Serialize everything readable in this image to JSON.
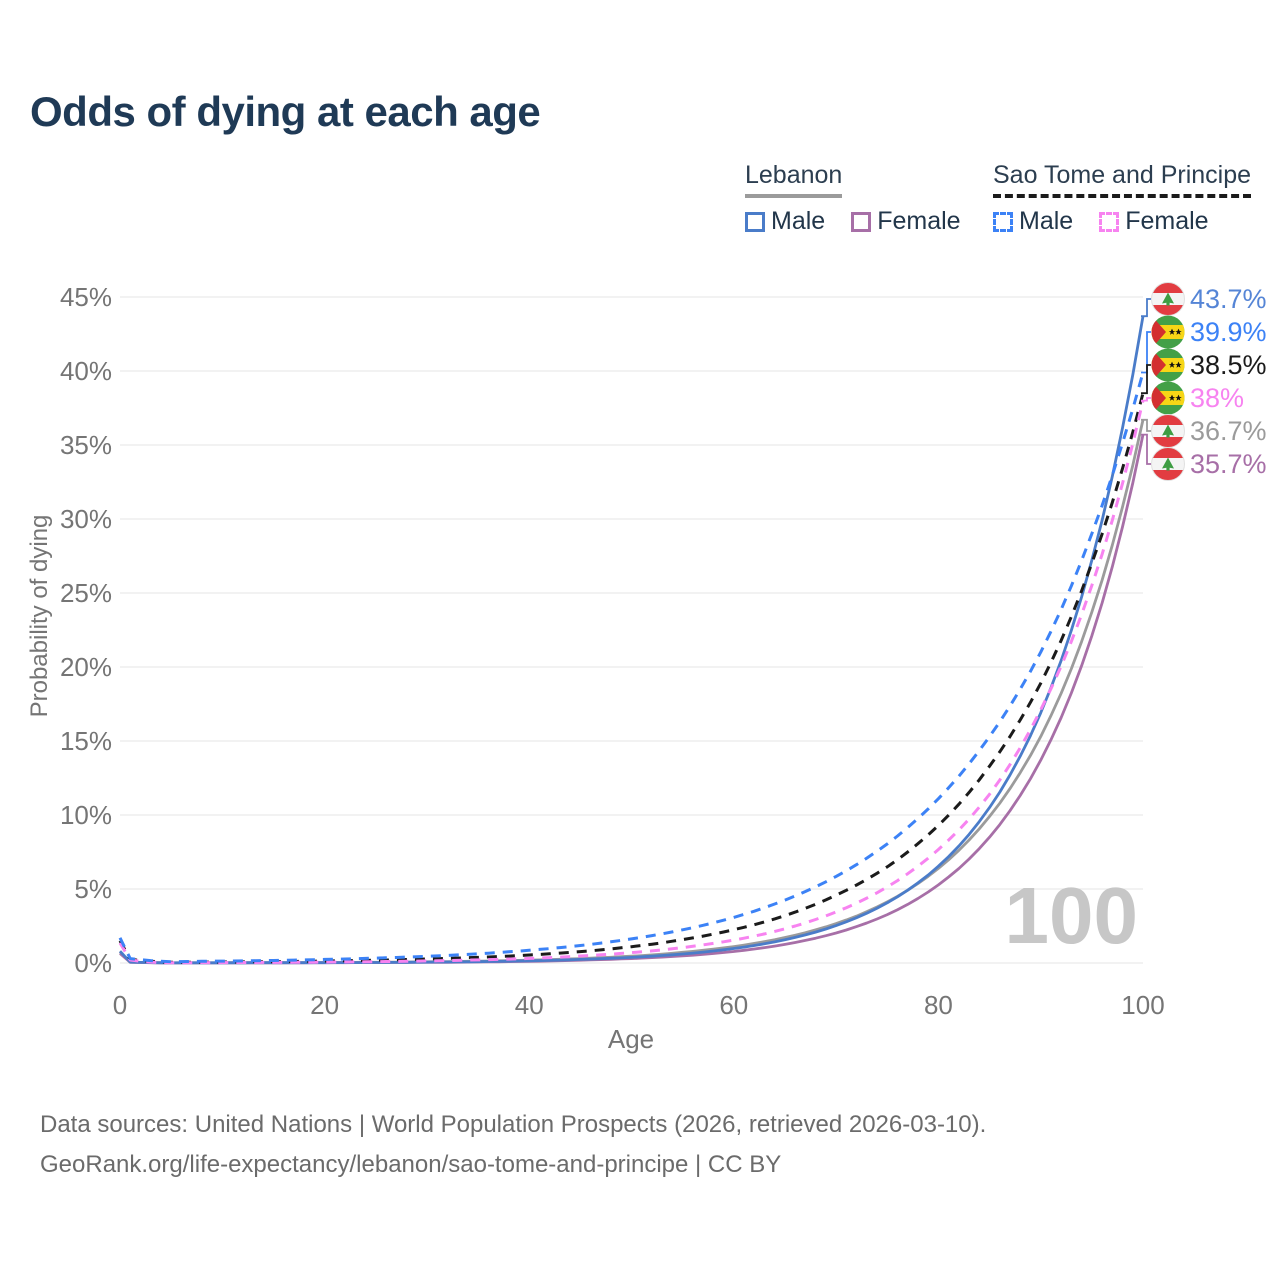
{
  "title": "Odds of dying at each age",
  "watermark": "100",
  "legend": {
    "groups": [
      {
        "name": "Lebanon",
        "line_style": "solid",
        "line_color": "#9b9b9b",
        "items": [
          {
            "label": "Male",
            "color": "#4a7cc9",
            "style": "solid"
          },
          {
            "label": "Female",
            "color": "#a76fa7",
            "style": "solid"
          }
        ]
      },
      {
        "name": "Sao Tome and Principe",
        "line_style": "dashed",
        "line_color": "#1b1b1b",
        "items": [
          {
            "label": "Male",
            "color": "#3c82f6",
            "style": "dashed"
          },
          {
            "label": "Female",
            "color": "#f783f0",
            "style": "dashed"
          }
        ]
      }
    ]
  },
  "axes": {
    "x_label": "Age",
    "y_label": "Probability of dying"
  },
  "footer": {
    "line1": "Data sources: United Nations | World Population Prospects (2026, retrieved 2026-03-10).",
    "line2": "GeoRank.org/life-expectancy/lebanon/sao-tome-and-principe | CC BY"
  },
  "chart_data": {
    "type": "line",
    "title": "Odds of dying at each age",
    "xlabel": "Age",
    "ylabel": "Probability of dying",
    "xlim": [
      0,
      100
    ],
    "ylim": [
      0,
      45
    ],
    "grid": true,
    "legend_position": "top-right",
    "x_ticks": [
      {
        "v": 0,
        "label": "0"
      },
      {
        "v": 20,
        "label": "20"
      },
      {
        "v": 40,
        "label": "40"
      },
      {
        "v": 60,
        "label": "60"
      },
      {
        "v": 80,
        "label": "80"
      },
      {
        "v": 100,
        "label": "100"
      }
    ],
    "y_ticks": [
      {
        "v": 0,
        "label": "0%"
      },
      {
        "v": 5,
        "label": "5%"
      },
      {
        "v": 10,
        "label": "10%"
      },
      {
        "v": 15,
        "label": "15%"
      },
      {
        "v": 20,
        "label": "20%"
      },
      {
        "v": 25,
        "label": "25%"
      },
      {
        "v": 30,
        "label": "30%"
      },
      {
        "v": 35,
        "label": "35%"
      },
      {
        "v": 40,
        "label": "40%"
      },
      {
        "v": 45,
        "label": "45%"
      }
    ],
    "ages": [
      0,
      1,
      5,
      10,
      15,
      20,
      25,
      30,
      35,
      40,
      45,
      50,
      55,
      60,
      65,
      70,
      75,
      80,
      85,
      90,
      95,
      100
    ],
    "series": [
      {
        "name": "Lebanon Both sexes",
        "country": "Lebanon",
        "sex": "Both sexes",
        "color": "#9b9b9b",
        "dash": "solid",
        "flag": "lebanon",
        "end_label": "36.7%",
        "label_color": "#9b9b9b",
        "values": [
          0.75,
          0.06,
          0.012,
          0.018,
          0.022,
          0.03,
          0.05,
          0.08,
          0.125,
          0.19,
          0.3,
          0.46,
          0.72,
          1.11,
          1.72,
          2.66,
          4.13,
          6.39,
          9.9,
          15.3,
          23.7,
          36.7
        ]
      },
      {
        "name": "Lebanon Female",
        "country": "Lebanon",
        "sex": "Female",
        "color": "#a76fa7",
        "dash": "solid",
        "flag": "lebanon",
        "end_label": "35.7%",
        "label_color": "#a76fa7",
        "values": [
          0.65,
          0.05,
          0.008,
          0.01,
          0.012,
          0.02,
          0.03,
          0.04,
          0.07,
          0.11,
          0.19,
          0.3,
          0.48,
          0.78,
          1.26,
          2.03,
          3.27,
          5.28,
          8.5,
          13.7,
          22.1,
          35.7
        ]
      },
      {
        "name": "Lebanon Male",
        "country": "Lebanon",
        "sex": "Male",
        "color": "#4a7cc9",
        "dash": "solid",
        "flag": "lebanon",
        "end_label": "43.7%",
        "label_color": "#5585d6",
        "values": [
          0.8,
          0.06,
          0.01,
          0.015,
          0.02,
          0.022,
          0.035,
          0.06,
          0.09,
          0.15,
          0.24,
          0.38,
          0.61,
          0.98,
          1.57,
          2.53,
          4.07,
          6.54,
          10.5,
          16.9,
          27.2,
          43.7
        ]
      },
      {
        "name": "Sao Tome and Principe Both sexes",
        "country": "Sao Tome and Principe",
        "sex": "Both sexes",
        "color": "#1b1b1b",
        "dash": "dashed",
        "flag": "sao-tome-and-principe",
        "end_label": "38.5%",
        "label_color": "#1b1b1b",
        "values": [
          1.5,
          0.25,
          0.05,
          0.065,
          0.09,
          0.13,
          0.19,
          0.27,
          0.38,
          0.54,
          0.77,
          1.1,
          1.58,
          2.25,
          3.2,
          4.58,
          6.5,
          9.3,
          13.3,
          18.9,
          27.0,
          38.5
        ]
      },
      {
        "name": "Sao Tome and Principe Female",
        "country": "Sao Tome and Principe",
        "sex": "Female",
        "color": "#f783f0",
        "dash": "dashed",
        "flag": "sao-tome-and-principe",
        "end_label": "38%",
        "label_color": "#f783f0",
        "values": [
          1.35,
          0.2,
          0.02,
          0.03,
          0.04,
          0.06,
          0.09,
          0.14,
          0.21,
          0.31,
          0.47,
          0.7,
          1.04,
          1.55,
          2.31,
          3.45,
          5.14,
          7.67,
          11.4,
          17.1,
          25.5,
          38.0
        ]
      },
      {
        "name": "Sao Tome and Principe Male",
        "country": "Sao Tome and Principe",
        "sex": "Male",
        "color": "#3c82f6",
        "dash": "dashed",
        "flag": "sao-tome-and-principe",
        "end_label": "39.9%",
        "label_color": "#3c82f6",
        "values": [
          1.7,
          0.3,
          0.09,
          0.13,
          0.17,
          0.24,
          0.33,
          0.45,
          0.62,
          0.86,
          1.18,
          1.63,
          2.24,
          3.08,
          4.25,
          5.85,
          8.05,
          11.1,
          15.3,
          21.0,
          29.0,
          39.9
        ]
      }
    ]
  }
}
